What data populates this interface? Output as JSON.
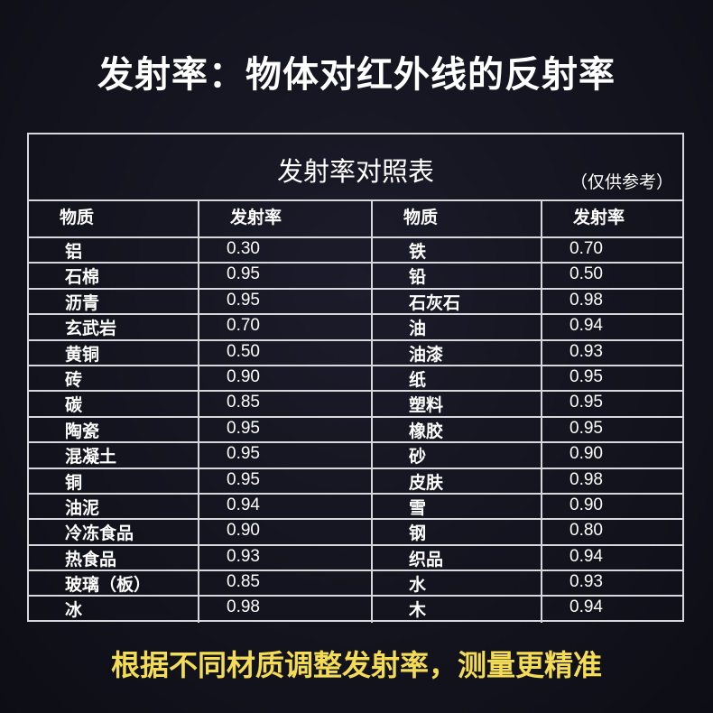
{
  "headline": "发射率：物体对红外线的反射率",
  "table": {
    "title": "发射率对照表",
    "note": "（仅供参考）",
    "headers": [
      "物质",
      "发射率",
      "物质",
      "发射率"
    ],
    "rows": [
      [
        "铝",
        "0.30",
        "铁",
        "0.70"
      ],
      [
        "石棉",
        "0.95",
        "铅",
        "0.50"
      ],
      [
        "沥青",
        "0.95",
        "石灰石",
        "0.98"
      ],
      [
        "玄武岩",
        "0.70",
        "油",
        "0.94"
      ],
      [
        "黄铜",
        "0.50",
        "油漆",
        "0.93"
      ],
      [
        "砖",
        "0.90",
        "纸",
        "0.95"
      ],
      [
        "碳",
        "0.85",
        "塑料",
        "0.95"
      ],
      [
        "陶瓷",
        "0.95",
        "橡胶",
        "0.95"
      ],
      [
        "混凝土",
        "0.95",
        "砂",
        "0.90"
      ],
      [
        "铜",
        "0.95",
        "皮肤",
        "0.98"
      ],
      [
        "油泥",
        "0.94",
        "雪",
        "0.90"
      ],
      [
        "冷冻食品",
        "0.90",
        "钢",
        "0.80"
      ],
      [
        "热食品",
        "0.93",
        "织品",
        "0.94"
      ],
      [
        "玻璃（板）",
        "0.85",
        "水",
        "0.93"
      ],
      [
        "冰",
        "0.98",
        "木",
        "0.94"
      ]
    ]
  },
  "footer": "根据不同材质调整发射率，测量更精准"
}
